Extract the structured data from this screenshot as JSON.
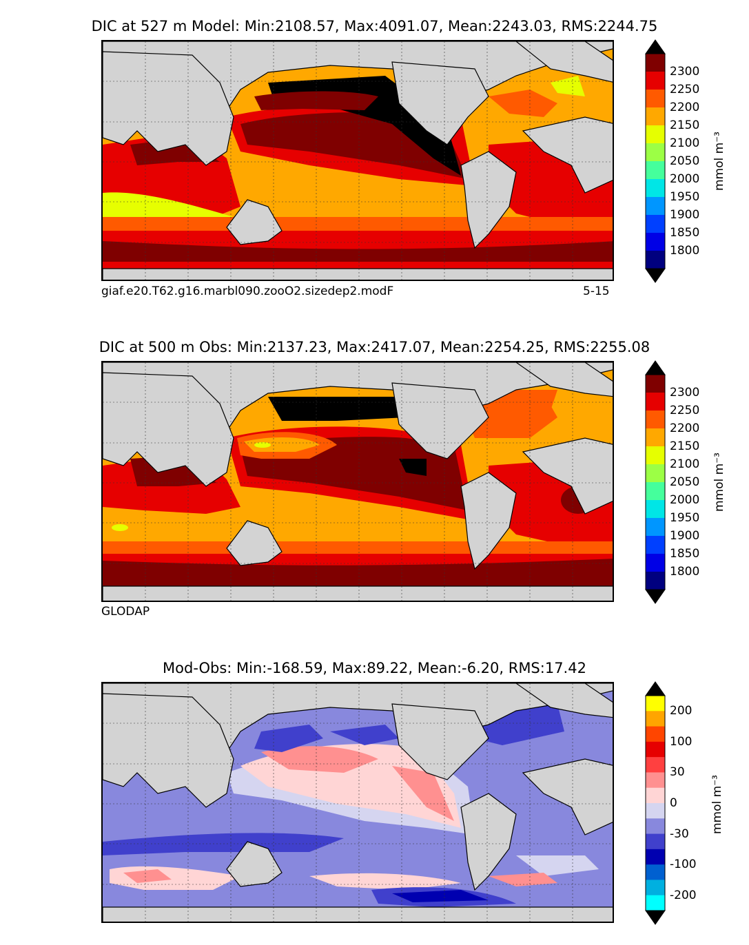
{
  "panels": [
    {
      "title": "DIC at 527 m Model: Min:2108.57, Max:4091.07, Mean:2243.03, RMS:2244.75",
      "caption_left": "giaf.e20.T62.g16.marbl090.zooO2.sizedep2.modF",
      "caption_right": "5-15",
      "colorbar": {
        "labels": [
          "2300",
          "2250",
          "2200",
          "2150",
          "2100",
          "2050",
          "2000",
          "1950",
          "1900",
          "1850",
          "1800"
        ],
        "colors": [
          "#000000",
          "#7f0000",
          "#e60000",
          "#ff5a00",
          "#ffa800",
          "#e6ff00",
          "#9cff45",
          "#45ff9c",
          "#00e6e6",
          "#0096ff",
          "#0040ff",
          "#0000e6",
          "#00007f",
          "#000000"
        ],
        "unit": "mmol m⁻³"
      }
    },
    {
      "title": "DIC at 500 m Obs: Min:2137.23, Max:2417.07, Mean:2254.25, RMS:2255.08",
      "caption_left": "GLODAP",
      "colorbar": {
        "labels": [
          "2300",
          "2250",
          "2200",
          "2150",
          "2100",
          "2050",
          "2000",
          "1950",
          "1900",
          "1850",
          "1800"
        ],
        "colors": [
          "#000000",
          "#7f0000",
          "#e60000",
          "#ff5a00",
          "#ffa800",
          "#e6ff00",
          "#9cff45",
          "#45ff9c",
          "#00e6e6",
          "#0096ff",
          "#0040ff",
          "#0000e6",
          "#00007f",
          "#000000"
        ],
        "unit": "mmol m⁻³"
      }
    },
    {
      "title": "Mod-Obs: Min:-168.59, Max:89.22, Mean:-6.20, RMS:17.42",
      "colorbar": {
        "labels": [
          "200",
          "100",
          "30",
          "0",
          "-30",
          "-100",
          "-200"
        ],
        "colors": [
          "#000000",
          "#ffff00",
          "#ffa500",
          "#ff4500",
          "#e60000",
          "#ff4040",
          "#ff9090",
          "#ffd5d5",
          "#d5d5f0",
          "#8888dd",
          "#4040cc",
          "#0000b0",
          "#0060d0",
          "#00b0e0",
          "#00ffff",
          "#000000"
        ],
        "unit": "mmol m⁻³"
      }
    }
  ]
}
